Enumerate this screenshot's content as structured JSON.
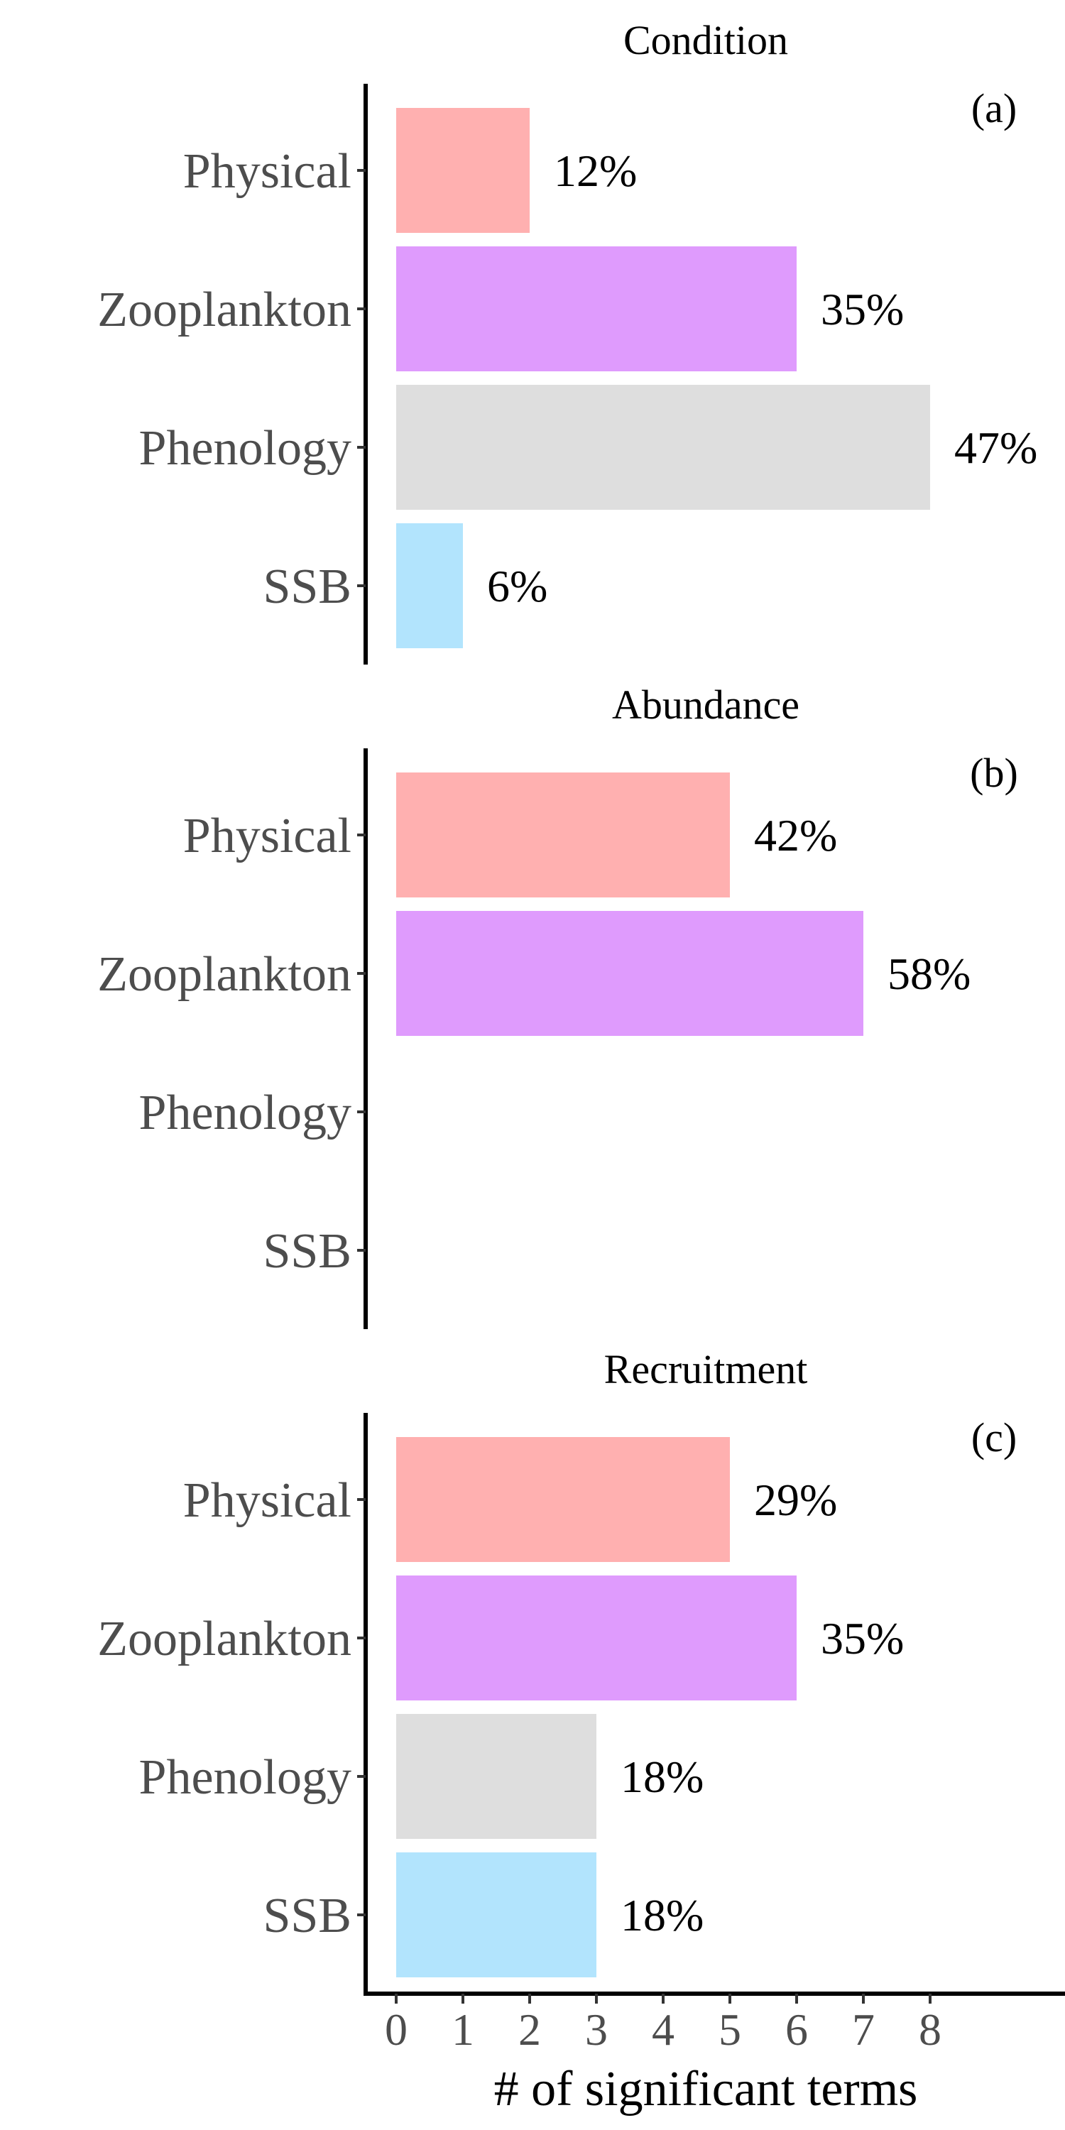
{
  "chart_data": {
    "type": "bar",
    "orientation": "horizontal",
    "categories": [
      "Physical",
      "Zooplankton",
      "Phenology",
      "SSB"
    ],
    "colors": {
      "Physical": "#FFB0B0",
      "Zooplankton": "#DF9BFD",
      "Phenology": "#DEDEDE",
      "SSB": "#B2E4FD"
    },
    "xlabel": "# of significant terms",
    "xlim": [
      0,
      9
    ],
    "xticks": [
      "0",
      "1",
      "2",
      "3",
      "4",
      "5",
      "6",
      "7",
      "8"
    ],
    "grid": false,
    "legend": "none",
    "panels": [
      {
        "title": "Condition",
        "tag": "(a)",
        "values": [
          2,
          6,
          8,
          1
        ],
        "labels": [
          "12%",
          "35%",
          "47%",
          "6%"
        ]
      },
      {
        "title": "Abundance",
        "tag": "(b)",
        "values": [
          5,
          7,
          0,
          0
        ],
        "labels": [
          "42%",
          "58%",
          "",
          ""
        ]
      },
      {
        "title": "Recruitment",
        "tag": "(c)",
        "values": [
          5,
          6,
          3,
          3
        ],
        "labels": [
          "29%",
          "35%",
          "18%",
          "18%"
        ]
      }
    ]
  }
}
